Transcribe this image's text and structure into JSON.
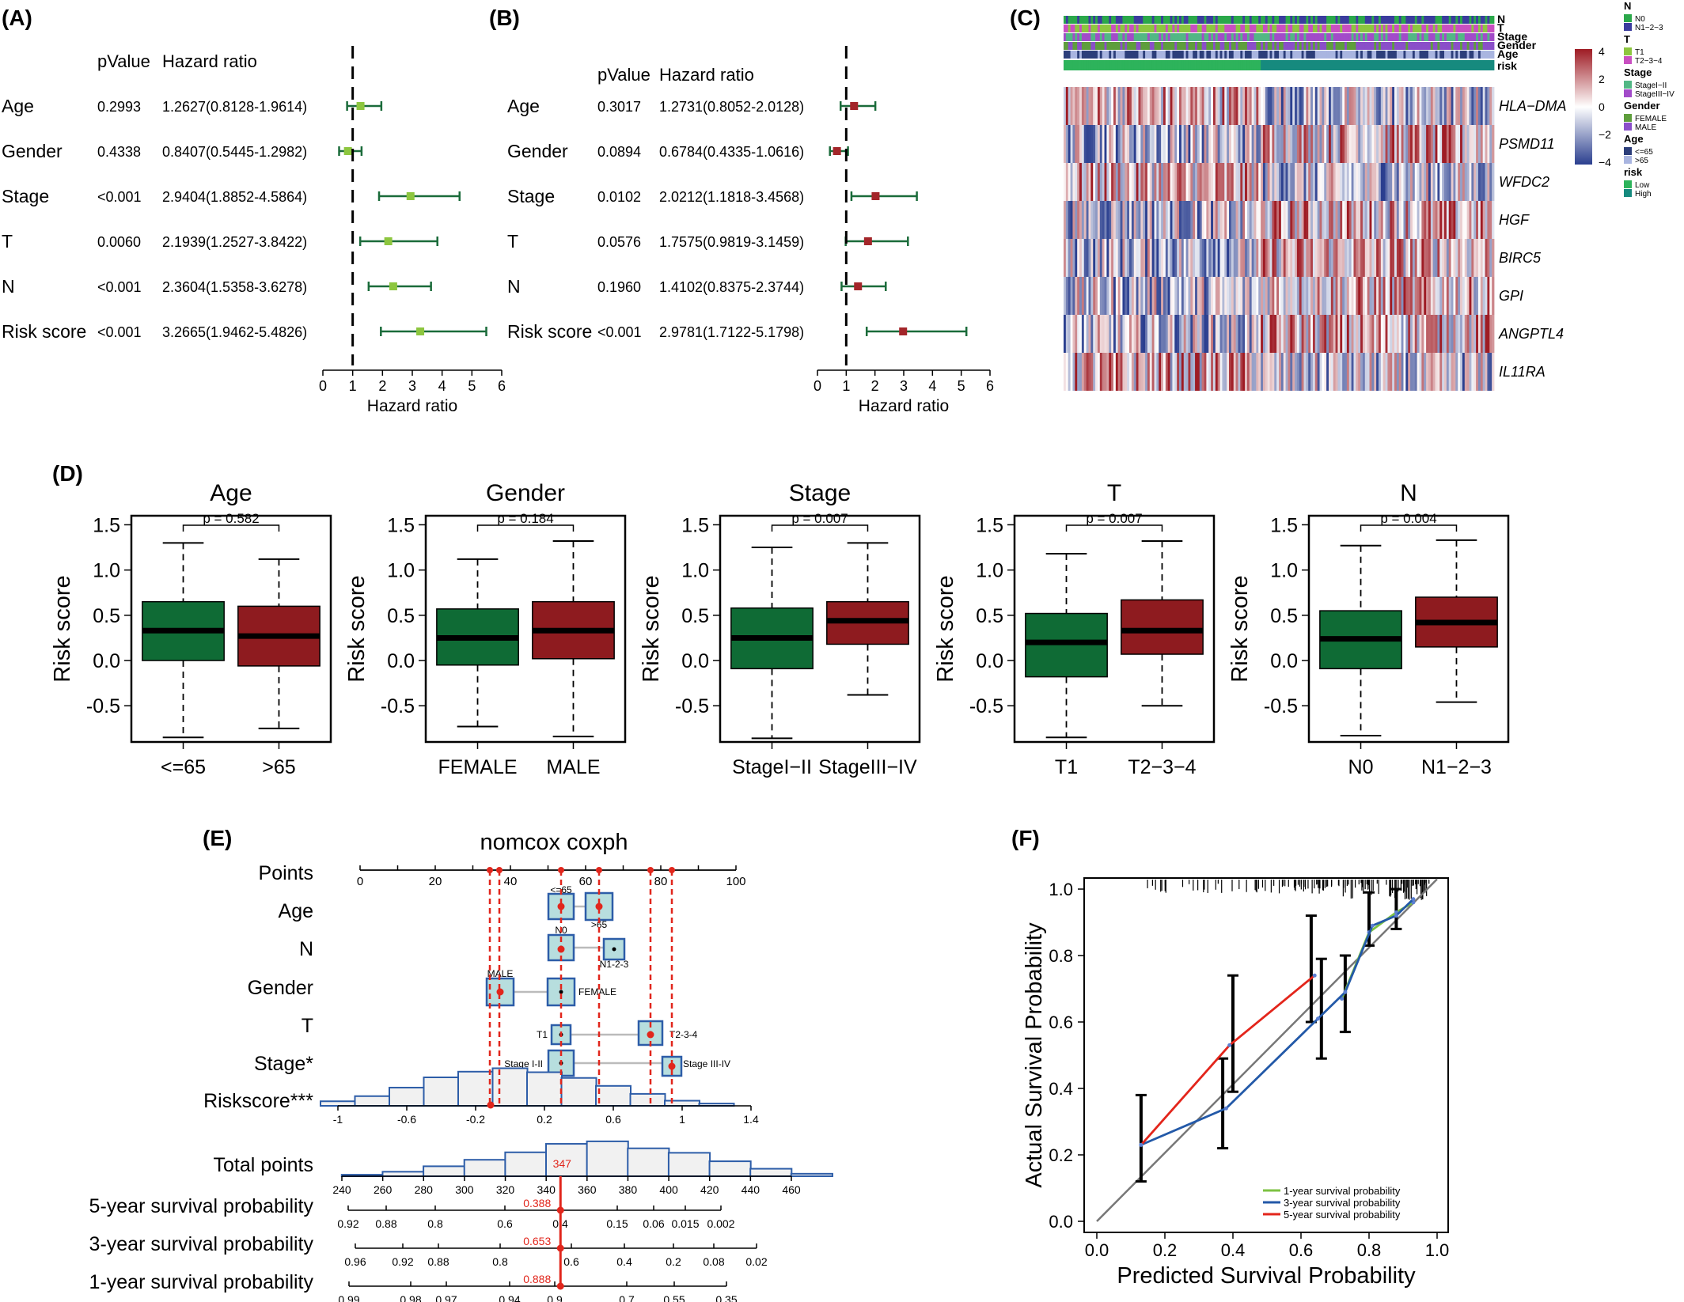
{
  "panel_labels": {
    "a": "(A)",
    "b": "(B)",
    "c": "(C)",
    "d": "(D)",
    "e": "(E)",
    "f": "(F)"
  },
  "forest_common": {
    "pvalue_header": "pValue",
    "hr_header": "Hazard ratio",
    "xlabel": "Hazard ratio",
    "ticks": [
      "0",
      "1",
      "2",
      "3",
      "4",
      "5",
      "6"
    ],
    "xlim": [
      0,
      6
    ],
    "reference": 1
  },
  "chart_data": [
    {
      "id": "A",
      "type": "forest",
      "colors": {
        "point": "#8dc63f",
        "ci": "#1a6b3a"
      },
      "rows": [
        {
          "label": "Age",
          "p": "0.2993",
          "hr_text": "1.2627(0.8128-1.9614)",
          "hr": 1.2627,
          "lo": 0.8128,
          "hi": 1.9614
        },
        {
          "label": "Gender",
          "p": "0.4338",
          "hr_text": "0.8407(0.5445-1.2982)",
          "hr": 0.8407,
          "lo": 0.5445,
          "hi": 1.2982
        },
        {
          "label": "Stage",
          "p": "<0.001",
          "hr_text": "2.9404(1.8852-4.5864)",
          "hr": 2.9404,
          "lo": 1.8852,
          "hi": 4.5864
        },
        {
          "label": "T",
          "p": "0.0060",
          "hr_text": "2.1939(1.2527-3.8422)",
          "hr": 2.1939,
          "lo": 1.2527,
          "hi": 3.8422
        },
        {
          "label": "N",
          "p": "<0.001",
          "hr_text": "2.3604(1.5358-3.6278)",
          "hr": 2.3604,
          "lo": 1.5358,
          "hi": 3.6278
        },
        {
          "label": "Risk score",
          "p": "<0.001",
          "hr_text": "3.2665(1.9462-5.4826)",
          "hr": 3.2665,
          "lo": 1.9462,
          "hi": 5.4826
        }
      ]
    },
    {
      "id": "B",
      "type": "forest",
      "colors": {
        "point": "#a3262a",
        "ci": "#1a6b3a"
      },
      "rows": [
        {
          "label": "Age",
          "p": "0.3017",
          "hr_text": "1.2731(0.8052-2.0128)",
          "hr": 1.2731,
          "lo": 0.8052,
          "hi": 2.0128
        },
        {
          "label": "Gender",
          "p": "0.0894",
          "hr_text": "0.6784(0.4335-1.0616)",
          "hr": 0.6784,
          "lo": 0.4335,
          "hi": 1.0616
        },
        {
          "label": "Stage",
          "p": "0.0102",
          "hr_text": "2.0212(1.1818-3.4568)",
          "hr": 2.0212,
          "lo": 1.1818,
          "hi": 3.4568
        },
        {
          "label": "T",
          "p": "0.0576",
          "hr_text": "1.7575(0.9819-3.1459)",
          "hr": 1.7575,
          "lo": 0.9819,
          "hi": 3.1459
        },
        {
          "label": "N",
          "p": "0.1960",
          "hr_text": "1.4102(0.8375-2.3744)",
          "hr": 1.4102,
          "lo": 0.8375,
          "hi": 2.3744
        },
        {
          "label": "Risk score",
          "p": "<0.001",
          "hr_text": "2.9781(1.7122-5.1798)",
          "hr": 2.9781,
          "lo": 1.7122,
          "hi": 5.1798
        }
      ]
    },
    {
      "id": "C",
      "type": "heatmap",
      "annotation_rows": [
        "N",
        "T",
        "Stage",
        "Gender",
        "Age",
        "risk"
      ],
      "genes": [
        "HLA−DMA",
        "PSMD11",
        "WFDC2",
        "HGF",
        "BIRC5",
        "GPI",
        "ANGPTL4",
        "IL11RA"
      ],
      "colorbar": {
        "ticks": [
          "4",
          "2",
          "0",
          "−2",
          "−4"
        ],
        "range": [
          -4,
          4
        ],
        "low": "#2b3f8f",
        "mid": "#ffffff",
        "high": "#9e1b24"
      },
      "n_samples": 190,
      "low_risk_fraction": 0.46,
      "legend": [
        {
          "title": "N",
          "items": [
            {
              "label": "N0",
              "color": "#2ba84a"
            },
            {
              "label": "N1−2−3",
              "color": "#3b3c9e"
            }
          ]
        },
        {
          "title": "T",
          "items": [
            {
              "label": "T1",
              "color": "#8dc63f"
            },
            {
              "label": "T2−3−4",
              "color": "#c94fc1"
            }
          ]
        },
        {
          "title": "Stage",
          "items": [
            {
              "label": "StageI−II",
              "color": "#52b785"
            },
            {
              "label": "StageIII−IV",
              "color": "#a24bc9"
            }
          ]
        },
        {
          "title": "Gender",
          "items": [
            {
              "label": "FEMALE",
              "color": "#5e9e3c"
            },
            {
              "label": "MALE",
              "color": "#8a4fc9"
            }
          ]
        },
        {
          "title": "Age",
          "items": [
            {
              "label": "<=65",
              "color": "#2c3e7a"
            },
            {
              "label": ">65",
              "color": "#a9b5e0"
            }
          ]
        },
        {
          "title": "risk",
          "items": [
            {
              "label": "Low",
              "color": "#2db35b"
            },
            {
              "label": "High",
              "color": "#168a7e"
            }
          ]
        }
      ]
    },
    {
      "id": "D",
      "type": "boxplot",
      "ylabel": "Risk score",
      "ylim": [
        -0.9,
        1.6
      ],
      "yticks": [
        "1.5",
        "1.0",
        "0.5",
        "0.0",
        "-0.5"
      ],
      "ytick_values": [
        1.5,
        1.0,
        0.5,
        0.0,
        -0.5
      ],
      "colors": {
        "low": "#0f6b35",
        "high": "#8e1b1f"
      },
      "panels": [
        {
          "title": "Age",
          "p": "p = 0.582",
          "groups": [
            {
              "label": "<=65",
              "min": -0.85,
              "q1": 0.0,
              "median": 0.33,
              "q3": 0.65,
              "max": 1.3
            },
            {
              "label": ">65",
              "min": -0.75,
              "q1": -0.06,
              "median": 0.27,
              "q3": 0.6,
              "max": 1.12
            }
          ]
        },
        {
          "title": "Gender",
          "p": "p = 0.184",
          "groups": [
            {
              "label": "FEMALE",
              "min": -0.73,
              "q1": -0.05,
              "median": 0.25,
              "q3": 0.57,
              "max": 1.12
            },
            {
              "label": "MALE",
              "min": -0.84,
              "q1": 0.02,
              "median": 0.33,
              "q3": 0.65,
              "max": 1.32
            }
          ]
        },
        {
          "title": "Stage",
          "p": "p = 0.007",
          "groups": [
            {
              "label": "StageI−II",
              "min": -0.86,
              "q1": -0.09,
              "median": 0.25,
              "q3": 0.58,
              "max": 1.25
            },
            {
              "label": "StageIII−IV",
              "min": -0.38,
              "q1": 0.18,
              "median": 0.44,
              "q3": 0.65,
              "max": 1.3
            }
          ]
        },
        {
          "title": "T",
          "p": "p = 0.007",
          "groups": [
            {
              "label": "T1",
              "min": -0.85,
              "q1": -0.18,
              "median": 0.2,
              "q3": 0.52,
              "max": 1.18
            },
            {
              "label": "T2−3−4",
              "min": -0.5,
              "q1": 0.07,
              "median": 0.33,
              "q3": 0.67,
              "max": 1.32
            }
          ]
        },
        {
          "title": "N",
          "p": "p = 0.004",
          "groups": [
            {
              "label": "N0",
              "min": -0.83,
              "q1": -0.09,
              "median": 0.24,
              "q3": 0.55,
              "max": 1.27
            },
            {
              "label": "N1−2−3",
              "min": -0.46,
              "q1": 0.15,
              "median": 0.42,
              "q3": 0.7,
              "max": 1.33
            }
          ]
        }
      ]
    },
    {
      "id": "E",
      "type": "nomogram",
      "title": "nomcox coxph",
      "rows": {
        "points": "Points",
        "age": "Age",
        "n": "N",
        "gender": "Gender",
        "t": "T",
        "stage": "Stage*",
        "risk": "Riskscore***",
        "total": "Total points",
        "y5": "5-year survival probability",
        "y3": "3-year survival probability",
        "y1": "1-year survival probability"
      },
      "points_ticks": [
        "0",
        "20",
        "40",
        "60",
        "80",
        "100"
      ],
      "risk_ticks": [
        "-1",
        "-0.6",
        "-0.2",
        "0.2",
        "0.6",
        "1",
        "1.4"
      ],
      "total_ticks": [
        "240",
        "260",
        "280",
        "300",
        "320",
        "340",
        "360",
        "380",
        "400",
        "420",
        "440",
        "460"
      ],
      "y5_ticks": [
        "0.92",
        "0.88",
        "0.8",
        "0.6",
        "0.4",
        "0.15",
        "0.06",
        "0.015",
        "0.002"
      ],
      "y3_ticks": [
        "0.96",
        "0.92",
        "0.88",
        "0.8",
        "0.6",
        "0.4",
        "0.2",
        "0.08",
        "0.02"
      ],
      "y1_ticks": [
        "0.99",
        "0.98",
        "0.97",
        "0.94",
        "0.9",
        "0.7",
        "0.55",
        "0.35"
      ],
      "category_labels": {
        "age_low": "<=65",
        "age_high": ">65",
        "n0": "N0",
        "n1": "N1-2-3",
        "male": "MALE",
        "female": "FEMALE",
        "t1": "T1",
        "t2": "T2-3-4",
        "s1": "Stage I-II",
        "s3": "Stage III-IV"
      },
      "total_value": "347",
      "y5_value": "0.388",
      "y3_value": "0.653",
      "y1_value": "0.888",
      "risk_hist": [
        0.8,
        1.7,
        3.2,
        5.0,
        6.0,
        6.6,
        5.9,
        4.9,
        3.5,
        2.1,
        0.9,
        0.4
      ],
      "total_hist": [
        0.3,
        0.9,
        2.0,
        3.3,
        4.8,
        6.5,
        7.0,
        5.6,
        4.7,
        3.0,
        1.5,
        0.5
      ],
      "marker_color": "#e1261c",
      "box_fill": "#b7dede",
      "box_stroke": "#2d5da8"
    },
    {
      "id": "F",
      "type": "line",
      "xlabel": "Predicted Survival Probability",
      "ylabel": "Actual Survival Probability",
      "xlim": [
        0,
        1
      ],
      "ylim": [
        0,
        1
      ],
      "xticks": [
        "0.0",
        "0.2",
        "0.4",
        "0.6",
        "0.8",
        "1.0"
      ],
      "yticks": [
        "0.0",
        "0.2",
        "0.4",
        "0.6",
        "0.8",
        "1.0"
      ],
      "series": [
        {
          "name": "1-year survival probability",
          "color": "#7dc243",
          "points": [
            [
              0.72,
              0.67
            ],
            [
              0.8,
              0.87
            ],
            [
              0.88,
              0.93
            ],
            [
              0.93,
              0.96
            ]
          ]
        },
        {
          "name": "3-year survival probability",
          "color": "#2359a8",
          "points": [
            [
              0.13,
              0.23
            ],
            [
              0.38,
              0.34
            ],
            [
              0.65,
              0.61
            ],
            [
              0.73,
              0.69
            ],
            [
              0.81,
              0.89
            ],
            [
              0.88,
              0.92
            ],
            [
              0.93,
              0.97
            ]
          ]
        },
        {
          "name": "5-year survival probability",
          "color": "#e3251b",
          "points": [
            [
              0.13,
              0.23
            ],
            [
              0.39,
              0.53
            ],
            [
              0.64,
              0.74
            ]
          ]
        }
      ],
      "error_bars": [
        {
          "x": 0.13,
          "lo": 0.12,
          "hi": 0.38
        },
        {
          "x": 0.37,
          "lo": 0.22,
          "hi": 0.49
        },
        {
          "x": 0.4,
          "lo": 0.39,
          "hi": 0.74
        },
        {
          "x": 0.63,
          "lo": 0.6,
          "hi": 0.92
        },
        {
          "x": 0.66,
          "lo": 0.49,
          "hi": 0.79
        },
        {
          "x": 0.73,
          "lo": 0.57,
          "hi": 0.8
        },
        {
          "x": 0.8,
          "lo": 0.83,
          "hi": 0.99
        },
        {
          "x": 0.88,
          "lo": 0.88,
          "hi": 1.0
        }
      ]
    }
  ]
}
